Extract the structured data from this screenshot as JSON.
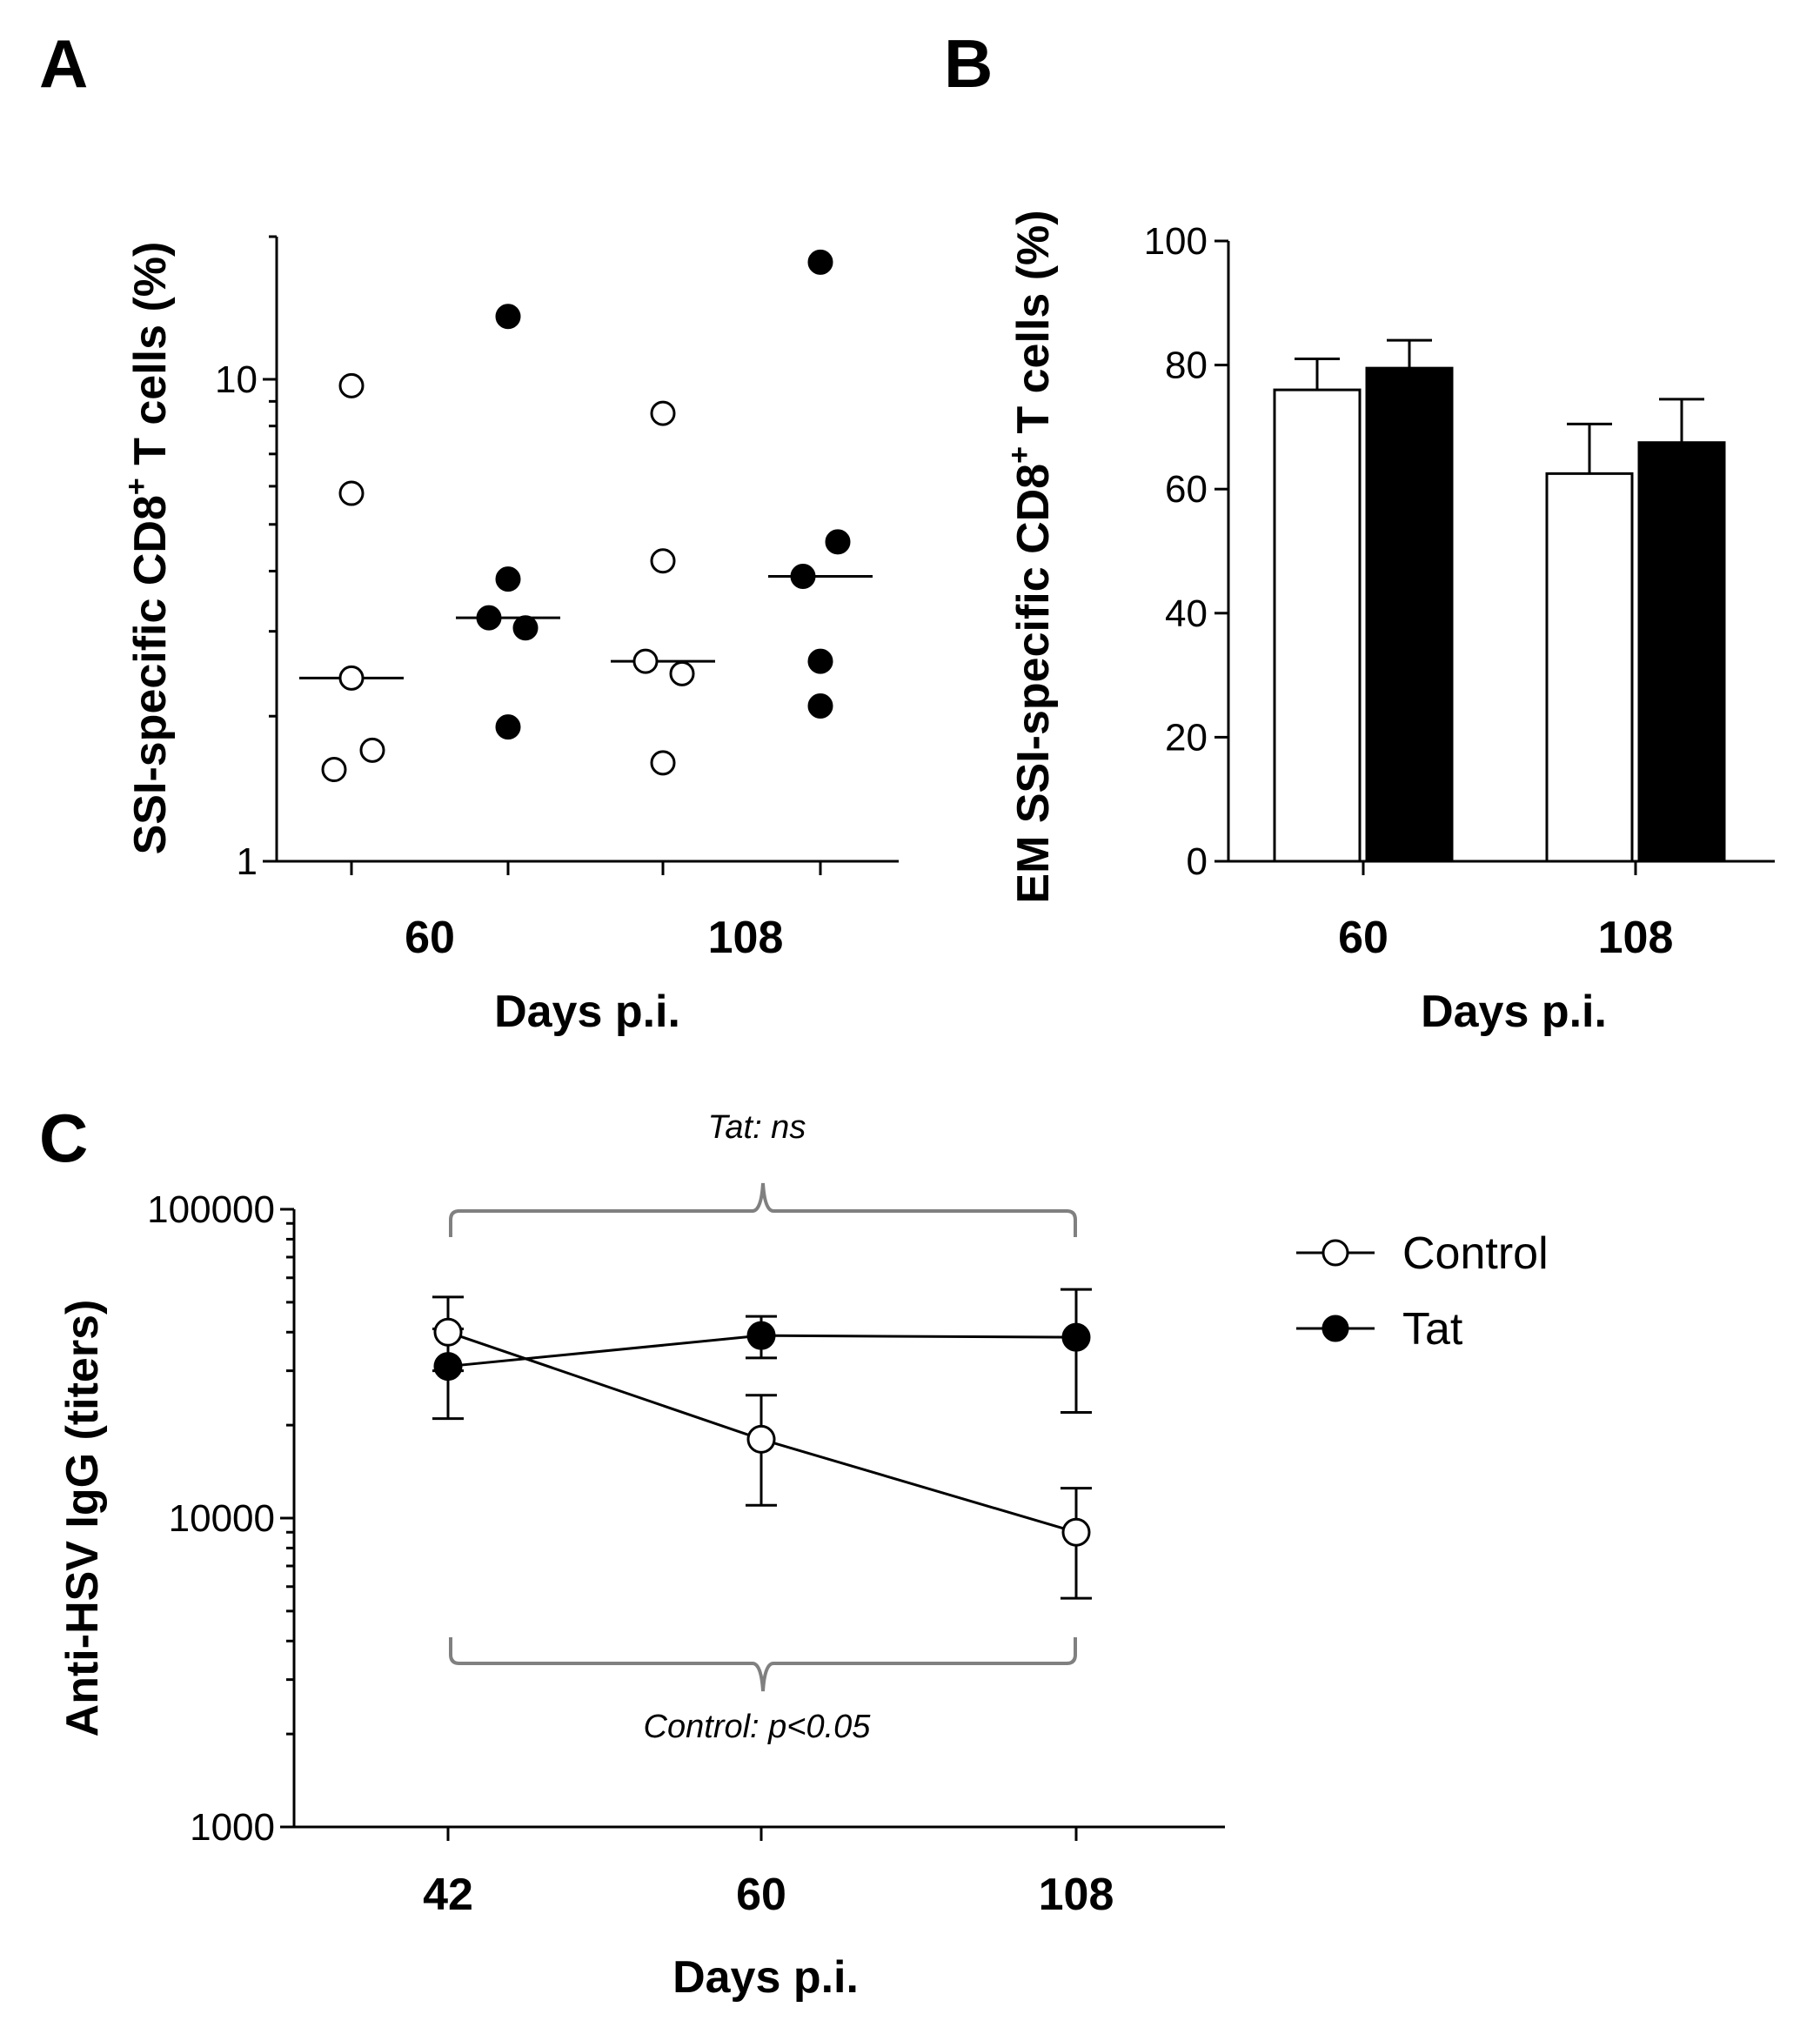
{
  "chart_data": [
    {
      "panel": "A",
      "type": "scatter",
      "yscale": "log",
      "ylim": [
        1,
        20
      ],
      "yticks": [
        {
          "value": 1,
          "label": "1"
        },
        {
          "value": 10,
          "label": "10"
        }
      ],
      "ylabel_main": "SSI-specific CD8",
      "ylabel_sup": "+",
      "ylabel_end": " T cells (%)",
      "xlabel": "Days p.i.",
      "categories": [
        "60",
        "108"
      ],
      "series": [
        {
          "name": "Control",
          "group": "60",
          "values": [
            9.7,
            5.8,
            2.4,
            1.7,
            1.55
          ],
          "median": 2.4
        },
        {
          "name": "Tat",
          "group": "60",
          "values": [
            13.5,
            3.85,
            3.2,
            3.05,
            1.9
          ],
          "median": 3.2
        },
        {
          "name": "Control",
          "group": "108",
          "values": [
            8.5,
            4.2,
            2.6,
            2.45,
            1.6
          ],
          "median": 2.6
        },
        {
          "name": "Tat",
          "group": "108",
          "values": [
            17.5,
            4.6,
            3.9,
            2.6,
            2.1
          ],
          "median": 3.9
        }
      ]
    },
    {
      "panel": "B",
      "type": "bar",
      "ylim": [
        0,
        100
      ],
      "yticks": [
        0,
        20,
        40,
        60,
        80,
        100
      ],
      "ylabel_main": "EM SSI-specific CD8",
      "ylabel_sup": "+",
      "ylabel_end": " T cells (%)",
      "xlabel": "Days p.i.",
      "categories": [
        "60",
        "108"
      ],
      "series": [
        {
          "name": "Control",
          "values": [
            76,
            62.5
          ],
          "errors": [
            5,
            8
          ]
        },
        {
          "name": "Tat",
          "values": [
            79.5,
            67.5
          ],
          "errors": [
            4.5,
            7
          ]
        }
      ]
    },
    {
      "panel": "C",
      "type": "line",
      "yscale": "log",
      "ylim": [
        1000,
        100000
      ],
      "yticks": [
        {
          "value": 1000,
          "label": "1000"
        },
        {
          "value": 10000,
          "label": "10000"
        },
        {
          "value": 100000,
          "label": "100000"
        }
      ],
      "ylabel": "Anti-HSV  IgG (titers)",
      "xlabel": "Days p.i.",
      "categories": [
        "42",
        "60",
        "108"
      ],
      "series": [
        {
          "name": "Control",
          "values": [
            40000,
            18000,
            9000
          ],
          "err_low": [
            30000,
            11000,
            5500
          ],
          "err_high": [
            52000,
            25000,
            12500
          ]
        },
        {
          "name": "Tat",
          "values": [
            31000,
            39000,
            38500
          ],
          "err_low": [
            21000,
            33000,
            22000
          ],
          "err_high": [
            41000,
            45000,
            55000
          ]
        }
      ],
      "annotations": {
        "top": "Tat: ns",
        "bottom": "Control: p<0.05"
      },
      "legend": [
        "Control",
        "Tat"
      ]
    }
  ]
}
